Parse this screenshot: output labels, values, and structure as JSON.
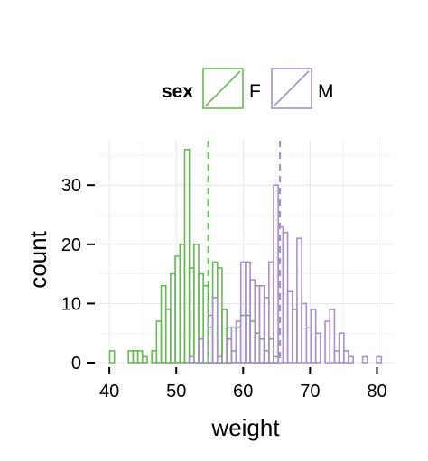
{
  "chart_data": {
    "type": "histogram",
    "title": "",
    "xlabel": "weight",
    "ylabel": "count",
    "xlim": [
      38.5,
      82.5
    ],
    "ylim": [
      0,
      37.5
    ],
    "x_ticks": [
      40,
      50,
      60,
      70,
      80
    ],
    "y_ticks": [
      0,
      10,
      20,
      30
    ],
    "grid": true,
    "bin_width": 0.7,
    "legend": {
      "title": "sex",
      "placement": "top"
    },
    "series": [
      {
        "name": "F",
        "color": "#66bb55",
        "mean": 54.8,
        "x": [
          40.4,
          43.2,
          43.9,
          44.6,
          45.3,
          46.0,
          46.7,
          47.4,
          48.1,
          48.8,
          49.5,
          50.2,
          50.9,
          51.6,
          52.3,
          53.0,
          53.7,
          54.4,
          55.1,
          55.8,
          56.5,
          57.2,
          57.9,
          58.6,
          59.3,
          60.0,
          60.7,
          61.4,
          62.1,
          62.8,
          63.5,
          64.2,
          64.9
        ],
        "values": [
          2,
          2,
          2,
          2,
          1,
          0,
          2,
          7,
          13,
          9,
          15,
          18,
          20,
          36,
          16,
          20,
          15,
          13,
          6,
          17,
          16,
          9,
          6,
          2,
          6,
          8,
          8,
          7,
          5,
          4,
          2,
          4,
          1
        ]
      },
      {
        "name": "M",
        "color": "#a98fcb",
        "mean": 65.5,
        "x": [
          52.3,
          53.7,
          55.1,
          55.8,
          56.5,
          57.9,
          58.6,
          59.3,
          60.0,
          60.7,
          61.4,
          62.1,
          62.8,
          63.5,
          64.2,
          64.9,
          65.6,
          66.3,
          67.0,
          67.7,
          68.4,
          69.1,
          69.8,
          70.5,
          71.2,
          72.6,
          73.3,
          74.0,
          74.7,
          75.4,
          76.1,
          78.2,
          80.3
        ],
        "values": [
          1,
          4,
          8,
          11,
          1,
          4,
          6,
          7,
          17,
          17,
          14,
          13,
          13,
          11,
          17,
          30,
          23,
          22,
          12,
          9,
          21,
          10,
          6,
          9,
          5,
          7,
          9,
          2,
          5,
          2,
          1,
          1,
          1
        ]
      }
    ]
  }
}
